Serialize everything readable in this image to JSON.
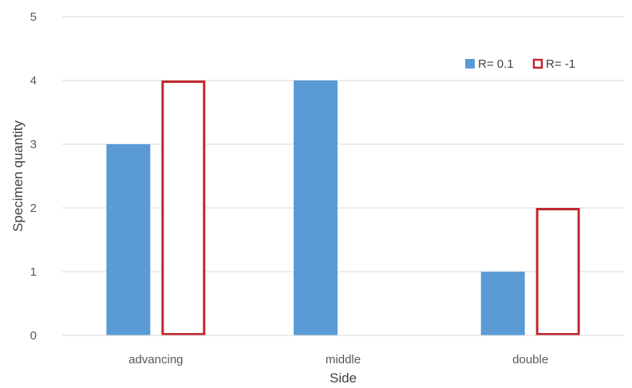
{
  "chart_data": {
    "type": "bar",
    "categories": [
      "advancing",
      "middle",
      "double"
    ],
    "series": [
      {
        "name": "R= 0.1",
        "values": [
          3,
          4,
          1
        ],
        "color": "#5B9BD5",
        "style": "filled"
      },
      {
        "name": "R= -1",
        "values": [
          4,
          0,
          2
        ],
        "color": "#C0282D",
        "style": "outline"
      }
    ],
    "title": "",
    "xlabel": "Side",
    "ylabel": "Specimen quantity",
    "ylim": [
      0,
      5
    ],
    "yticks": [
      0,
      1,
      2,
      3,
      4,
      5
    ],
    "grid": true,
    "legend_position": "top-right"
  }
}
